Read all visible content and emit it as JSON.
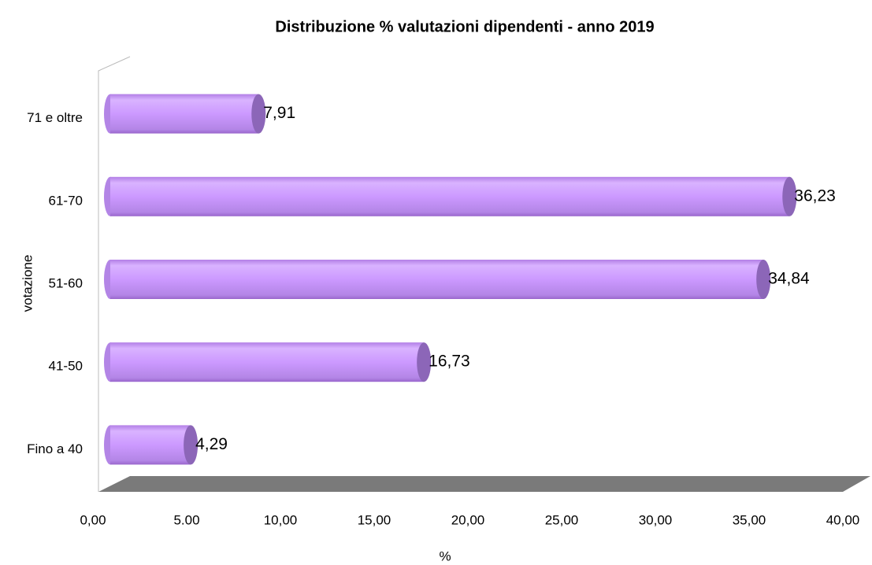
{
  "chart_data": {
    "type": "bar",
    "orientation": "horizontal",
    "title": "Distribuzione % valutazioni dipendenti - anno 2019",
    "x_label": "%",
    "y_label": "votazione",
    "categories": [
      "Fino a 40",
      "41-50",
      "51-60",
      "61-70",
      "71 e oltre"
    ],
    "values": [
      4.29,
      16.73,
      34.84,
      36.23,
      7.91
    ],
    "value_labels": [
      "4,29",
      "16,73",
      "34,84",
      "36,23",
      "7,91"
    ],
    "color": "#cc99ff",
    "xlim": [
      0,
      40
    ],
    "xticks": [
      {
        "value": 0,
        "label": "0,00"
      },
      {
        "value": 5,
        "label": "5.00"
      },
      {
        "value": 10,
        "label": "10,00"
      },
      {
        "value": 15,
        "label": "15,00"
      },
      {
        "value": 20,
        "label": "20,00"
      },
      {
        "value": 25,
        "label": "25,00"
      },
      {
        "value": 30,
        "label": "30,00"
      },
      {
        "value": 35,
        "label": "35,00"
      },
      {
        "value": 40,
        "label": "40,00"
      }
    ]
  }
}
